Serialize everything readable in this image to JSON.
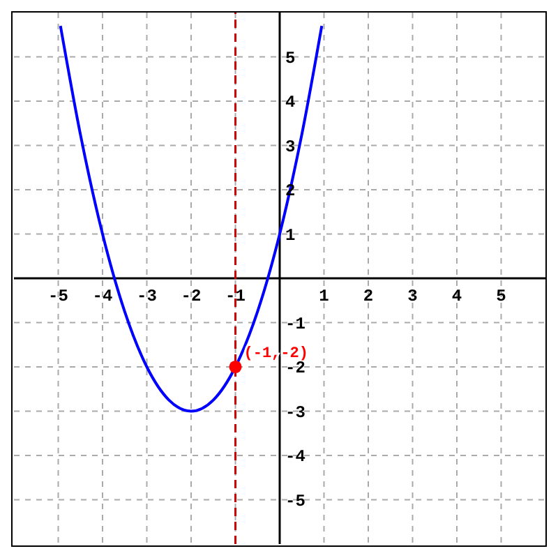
{
  "chart_data": {
    "type": "line",
    "xlim": [
      -6,
      6
    ],
    "ylim": [
      -6,
      6
    ],
    "xticks": [
      -5,
      -4,
      -3,
      -2,
      -1,
      1,
      2,
      3,
      4,
      5
    ],
    "yticks": [
      -5,
      -4,
      -3,
      -2,
      -1,
      1,
      2,
      3,
      4,
      5
    ],
    "grid": true,
    "series": [
      {
        "color": "#0000ff",
        "line_style": "solid",
        "marker": "none",
        "x": [
          -4.95,
          -4.5,
          -4,
          -3.5,
          -3,
          -2.5,
          -2,
          -1.5,
          -1,
          -0.5,
          0,
          0.5,
          0.95
        ],
        "values": [
          5.7,
          3.25,
          1,
          -0.75,
          -2,
          -2.75,
          -3,
          -2.75,
          -2,
          -0.75,
          1,
          3.25,
          5.7
        ]
      },
      {
        "type": "scatter",
        "color": "#ff0000",
        "marker": "circle",
        "x": [
          -1
        ],
        "values": [
          -2
        ]
      }
    ],
    "ref_lines": [
      {
        "axis": "x",
        "value": -1,
        "color": "#cc0000",
        "line_style": "dashed"
      }
    ],
    "annotations": [
      {
        "text": "(-1,-2)",
        "x": -1,
        "y": -2
      }
    ]
  }
}
